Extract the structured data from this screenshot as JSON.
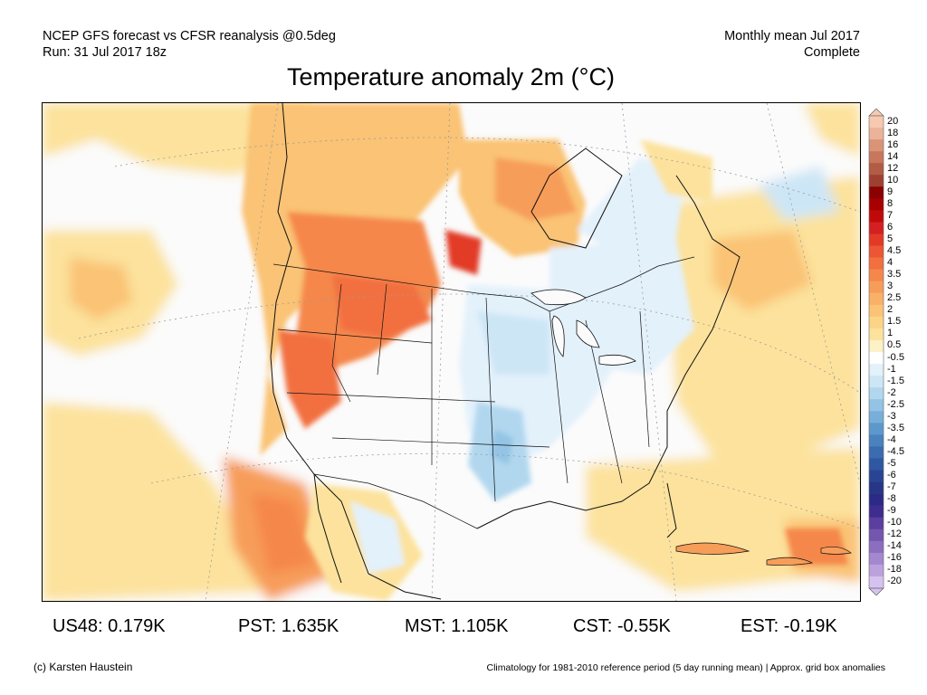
{
  "header": {
    "line1_left": "NCEP GFS forecast vs CFSR reanalysis @0.5deg",
    "line2_left": "Run: 31 Jul 2017 18z",
    "line1_right": "Monthly mean Jul 2017",
    "line2_right": "Complete"
  },
  "title": "Temperature anomaly 2m (°C)",
  "colorbar": {
    "labels": [
      "20",
      "18",
      "16",
      "14",
      "12",
      "10",
      "9",
      "8",
      "7",
      "6",
      "5",
      "4.5",
      "4",
      "3.5",
      "3",
      "2.5",
      "2",
      "1.5",
      "1",
      "0.5",
      "-0.5",
      "-1",
      "-1.5",
      "-2",
      "-2.5",
      "-3",
      "-3.5",
      "-4",
      "-4.5",
      "-5",
      "-6",
      "-7",
      "-8",
      "-9",
      "-10",
      "-12",
      "-14",
      "-16",
      "-18",
      "-20"
    ],
    "colors": [
      "#f6c9b0",
      "#eab39a",
      "#d99477",
      "#c8775c",
      "#b25b45",
      "#9e4031",
      "#8b0000",
      "#a80000",
      "#c00a0a",
      "#d42020",
      "#e23a26",
      "#ec5634",
      "#f26f40",
      "#f5874c",
      "#f79d5a",
      "#f9b067",
      "#fac375",
      "#fbd487",
      "#fce29c",
      "#fdf1c8",
      "#ffffff",
      "#e3f1fb",
      "#cde6f6",
      "#b1d7ef",
      "#93c4e5",
      "#77afd9",
      "#5c98cc",
      "#4a82be",
      "#3c6cb0",
      "#2f57a2",
      "#2a4494",
      "#253786",
      "#2b2a86",
      "#3e2c8e",
      "#5a3f9e",
      "#7356ae",
      "#8b6ebf",
      "#a487cf",
      "#bca2dd",
      "#d6c2ef"
    ],
    "legend_note": "upper end warm (orange/red), lower end cold (blue/purple)"
  },
  "stats": [
    {
      "label": "US48: 0.179K"
    },
    {
      "label": "PST: 1.635K"
    },
    {
      "label": "MST: 1.105K"
    },
    {
      "label": "CST: -0.55K"
    },
    {
      "label": "EST: -0.19K"
    }
  ],
  "footer": {
    "left": "(c) Karsten Haustein",
    "right": "Climatology for 1981-2010 reference period (5 day running mean) | Approx. grid box anomalies"
  },
  "map": {
    "colors": {
      "land_bg": "#fbfbfb",
      "warm_light": "#fce29c",
      "warm_mid": "#fac375",
      "warm_strong": "#f5874c",
      "warm_hot": "#e23a26",
      "cool_light": "#e3f1fb",
      "cool_mid": "#b1d7ef",
      "cool_strong": "#77afd9",
      "border": "#111111",
      "grid": "#9a9a9a"
    }
  }
}
